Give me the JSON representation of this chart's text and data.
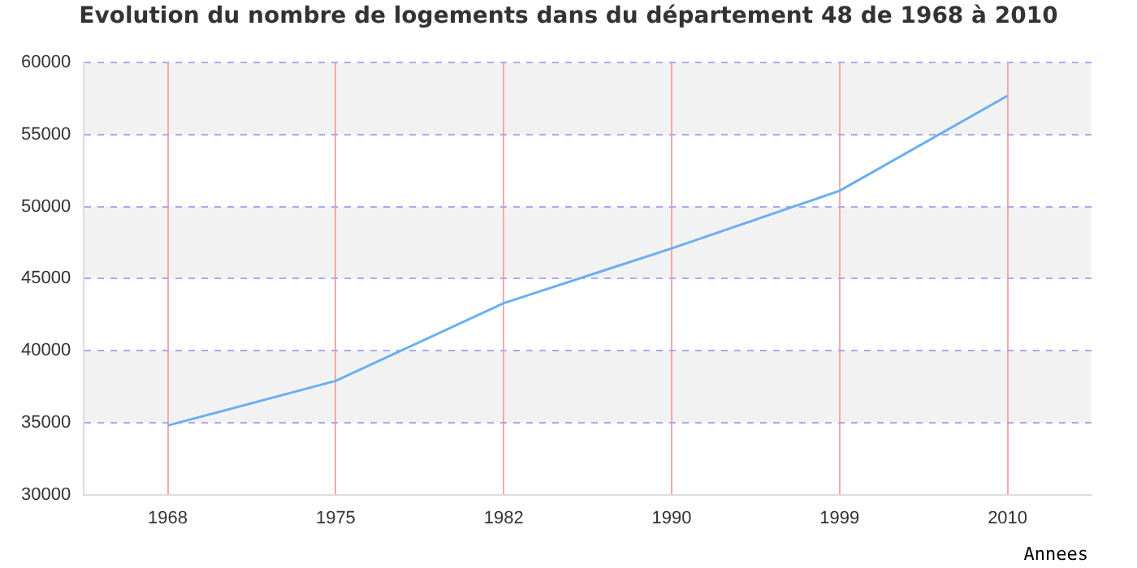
{
  "chart_data": {
    "type": "line",
    "title": "Evolution du nombre de logements dans du département 48 de 1968 à 2010",
    "xlabel": "Annees",
    "categories": [
      "1968",
      "1975",
      "1982",
      "1990",
      "1999",
      "2010"
    ],
    "series": [
      {
        "color": "#6aaff0",
        "values": [
          34800,
          37900,
          43300,
          47100,
          51100,
          57700
        ]
      }
    ],
    "ylim": [
      30000,
      60000
    ],
    "yticks": [
      30000,
      35000,
      40000,
      45000,
      50000,
      55000,
      60000
    ],
    "grid": true,
    "marker": "none",
    "line_style": "solid",
    "legend": false
  }
}
